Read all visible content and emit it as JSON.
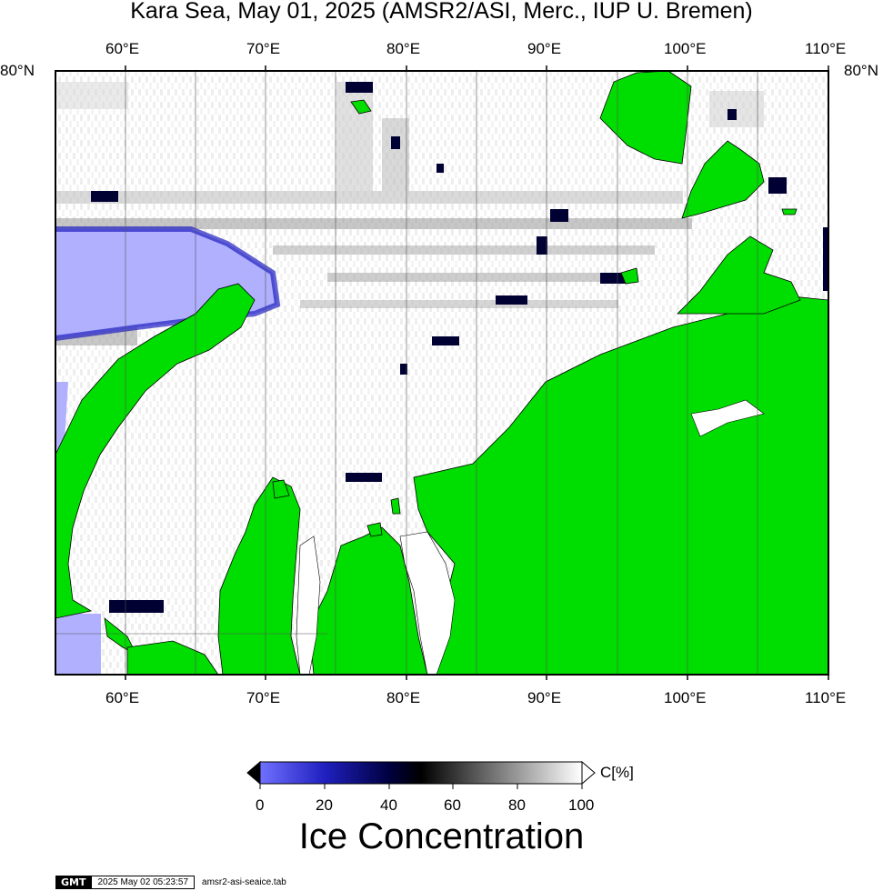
{
  "title": "Kara Sea, May 01, 2025 (AMSR2/ASI, Merc., IUP U. Bremen)",
  "axes": {
    "lon_top": [
      "60°E",
      "70°E",
      "80°E",
      "90°E",
      "100°E",
      "110°E"
    ],
    "lon_bottom": [
      "60°E",
      "70°E",
      "80°E",
      "90°E",
      "100°E",
      "110°E"
    ],
    "lat_left": "80°N",
    "lat_right": "80°N"
  },
  "colorbar": {
    "ticks": [
      "0",
      "20",
      "40",
      "60",
      "80",
      "100"
    ],
    "unit": "C[%]",
    "title": "Ice Concentration",
    "stops": [
      "#7070ff",
      "#2020c0",
      "#000040",
      "#000000",
      "#808080",
      "#ffffff"
    ]
  },
  "colors": {
    "land": "#00dd00",
    "open_water": "#b0b0ff",
    "ice": "#ffffff"
  },
  "footer": {
    "logo": "GMT",
    "timestamp": "2025 May 02 05:23:57",
    "filename": "amsr2-asi-seaice.tab"
  }
}
